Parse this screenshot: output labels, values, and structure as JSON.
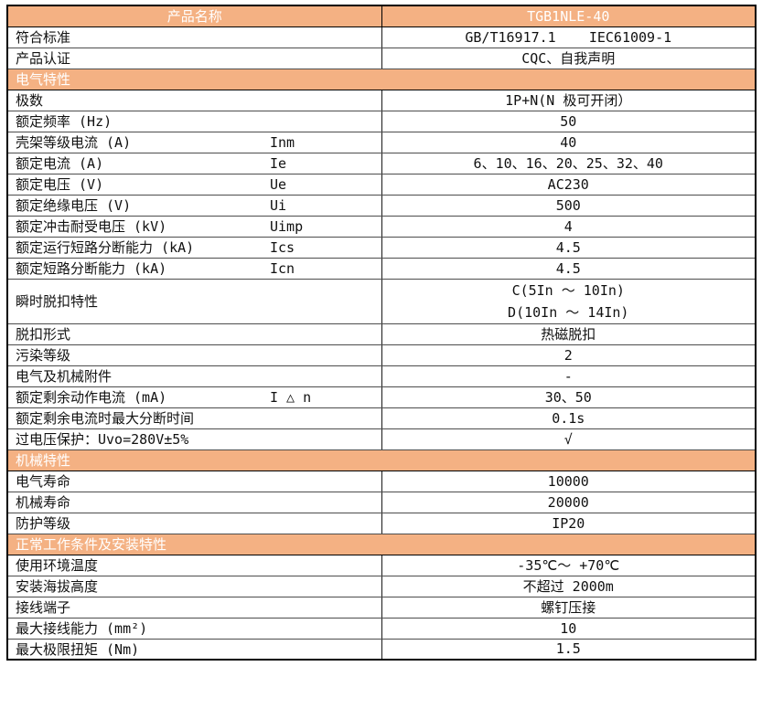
{
  "colors": {
    "accent": "#F4B183",
    "header_text": "#ffffff",
    "body_text": "#111111"
  },
  "table": {
    "rows": [
      {
        "type": "header",
        "label": "产品名称",
        "value": "TGB1NLE-40"
      },
      {
        "type": "data",
        "label": "符合标准",
        "value": "GB/T16917.1    IEC61009-1"
      },
      {
        "type": "data",
        "label": "产品认证",
        "value": "CQC、自我声明"
      },
      {
        "type": "section",
        "label": "电气特性"
      },
      {
        "type": "data",
        "label": "极数",
        "value": "1P+N(N 极可开闭）"
      },
      {
        "type": "data",
        "label": "额定频率 (Hz)",
        "value": "50"
      },
      {
        "type": "data",
        "label": "壳架等级电流 (A)",
        "symbol": "Inm",
        "value": "40"
      },
      {
        "type": "data",
        "label": "额定电流 (A)",
        "symbol": "Ie",
        "value": "6、10、16、20、25、32、40"
      },
      {
        "type": "data",
        "label": "额定电压 (V)",
        "symbol": "Ue",
        "value": "AC230"
      },
      {
        "type": "data",
        "label": "额定绝缘电压 (V)",
        "symbol": "Ui",
        "value": "500"
      },
      {
        "type": "data",
        "label": "额定冲击耐受电压 (kV)",
        "symbol": "Uimp",
        "value": "4"
      },
      {
        "type": "data",
        "label": "额定运行短路分断能力 (kA)",
        "symbol": "Ics",
        "value": "4.5"
      },
      {
        "type": "data",
        "label": "额定短路分断能力 (kA)",
        "symbol": "Icn",
        "value": "4.5"
      },
      {
        "type": "data2",
        "label": "瞬时脱扣特性",
        "lines": [
          "C(5In ～ 10In)",
          "D(10In ～ 14In)"
        ]
      },
      {
        "type": "data",
        "label": "脱扣形式",
        "value": "热磁脱扣"
      },
      {
        "type": "data",
        "label": "污染等级",
        "value": "2"
      },
      {
        "type": "data",
        "label": "电气及机械附件",
        "value": "-"
      },
      {
        "type": "data",
        "label": "额定剩余动作电流 (mA)",
        "symbol": "I △ n",
        "value": "30、50"
      },
      {
        "type": "data",
        "label": "额定剩余电流时最大分断时间",
        "value": "0.1s"
      },
      {
        "type": "data",
        "label": "过电压保护：Uvo=280V±5%",
        "value": "√"
      },
      {
        "type": "section",
        "label": "机械特性"
      },
      {
        "type": "data",
        "label": "电气寿命",
        "value": "10000"
      },
      {
        "type": "data",
        "label": "机械寿命",
        "value": "20000"
      },
      {
        "type": "data",
        "label": "防护等级",
        "value": "IP20"
      },
      {
        "type": "section",
        "label": "正常工作条件及安装特性"
      },
      {
        "type": "data",
        "label": "使用环境温度",
        "value": "-35℃～ +70℃"
      },
      {
        "type": "data",
        "label": "安装海拔高度",
        "value": "不超过 2000m"
      },
      {
        "type": "data",
        "label": "接线端子",
        "value": "螺钉压接"
      },
      {
        "type": "data",
        "label": "最大接线能力 (mm²)",
        "value": "10"
      },
      {
        "type": "data",
        "label": "最大极限扭矩 (Nm)",
        "value": "1.5"
      }
    ]
  }
}
